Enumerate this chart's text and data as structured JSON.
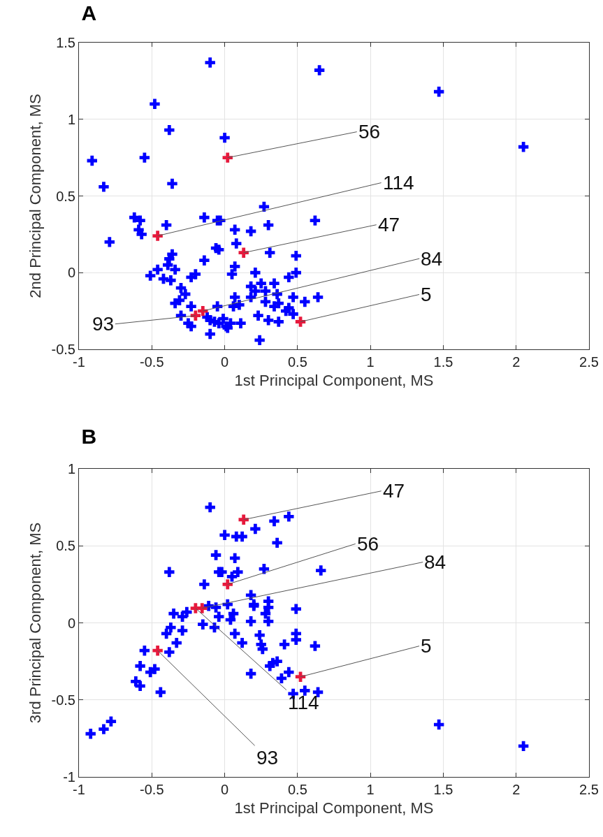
{
  "chart_data": [
    {
      "type": "scatter",
      "title": "A",
      "xlabel": "1st Principal Component, MS",
      "ylabel": "2nd Principal Component, MS",
      "xlim": [
        -1,
        2.5
      ],
      "ylim": [
        -0.5,
        1.5
      ],
      "xticks": [
        -1,
        -0.5,
        0,
        0.5,
        1,
        1.5,
        2,
        2.5
      ],
      "yticks": [
        -0.5,
        0,
        0.5,
        1,
        1.5
      ],
      "grid": true,
      "marker": "cross",
      "series": [
        {
          "color": "#0000ff",
          "x": [
            -0.91,
            -0.83,
            -0.79,
            -0.55,
            -0.48,
            -0.38,
            -0.36,
            -0.1,
            0.0,
            0.65,
            1.47,
            2.05,
            -0.62,
            -0.58,
            -0.59,
            -0.57,
            -0.4,
            -0.14,
            -0.05,
            -0.03,
            0.27,
            0.3,
            0.62,
            0.07,
            0.18,
            0.08,
            -0.06,
            -0.04,
            0.31,
            0.49,
            -0.14,
            0.07,
            0.05,
            0.21,
            0.49,
            0.44,
            -0.36,
            -0.38,
            -0.34,
            -0.46,
            -0.51,
            -0.42,
            -0.37,
            -0.39,
            -0.23,
            -0.3,
            -0.27,
            -0.31,
            -0.34,
            -0.23,
            -0.3,
            -0.25,
            -0.23,
            -0.12,
            -0.1,
            -0.07,
            -0.04,
            -0.1,
            -0.01,
            0.01,
            0.04,
            0.02,
            0.11,
            0.07,
            0.1,
            0.06,
            0.18,
            0.21,
            0.18,
            0.25,
            0.28,
            0.34,
            0.36,
            0.37,
            0.28,
            0.23,
            0.3,
            0.37,
            0.34,
            0.44,
            0.47,
            0.55,
            0.64,
            0.42,
            0.47,
            0.24,
            -0.05,
            -0.2
          ],
          "values": [
            0.73,
            0.56,
            0.2,
            0.75,
            1.1,
            0.93,
            0.58,
            1.37,
            0.88,
            1.32,
            1.18,
            0.82,
            0.36,
            0.34,
            0.28,
            0.25,
            0.31,
            0.36,
            0.34,
            0.34,
            0.43,
            0.31,
            0.34,
            0.28,
            0.27,
            0.19,
            0.16,
            0.15,
            0.13,
            0.11,
            0.08,
            0.04,
            -0.01,
            0.0,
            0.0,
            -0.03,
            0.12,
            0.09,
            0.02,
            0.02,
            -0.02,
            -0.04,
            -0.05,
            0.05,
            -0.03,
            -0.1,
            -0.14,
            -0.18,
            -0.2,
            -0.22,
            -0.28,
            -0.33,
            -0.35,
            -0.29,
            -0.31,
            -0.32,
            -0.33,
            -0.4,
            -0.3,
            -0.35,
            -0.33,
            -0.36,
            -0.33,
            -0.16,
            -0.21,
            -0.22,
            -0.09,
            -0.12,
            -0.16,
            -0.07,
            -0.12,
            -0.07,
            -0.14,
            -0.2,
            -0.19,
            -0.28,
            -0.31,
            -0.32,
            -0.22,
            -0.23,
            -0.16,
            -0.19,
            -0.16,
            -0.25,
            -0.27,
            -0.44,
            -0.22,
            -0.01
          ]
        },
        {
          "color": "#e6193c",
          "x": [
            0.02,
            -0.46,
            0.13,
            -0.15,
            0.52,
            -0.2
          ],
          "values": [
            0.75,
            0.24,
            0.13,
            -0.25,
            -0.32,
            -0.28
          ]
        }
      ],
      "annotations": [
        {
          "text": "56",
          "x": 0.02,
          "y": 0.75
        },
        {
          "text": "114",
          "x": -0.46,
          "y": 0.24
        },
        {
          "text": "47",
          "x": 0.13,
          "y": 0.13
        },
        {
          "text": "84",
          "x": -0.15,
          "y": -0.25
        },
        {
          "text": "5",
          "x": 0.52,
          "y": -0.32
        },
        {
          "text": "93",
          "x": -0.2,
          "y": -0.28
        }
      ]
    },
    {
      "type": "scatter",
      "title": "B",
      "xlabel": "1st Principal Component, MS",
      "ylabel": "3rd Principal Component, MS",
      "xlim": [
        -1,
        2.5
      ],
      "ylim": [
        -1,
        1
      ],
      "xticks": [
        -1,
        -0.5,
        0,
        0.5,
        1,
        1.5,
        2,
        2.5
      ],
      "yticks": [
        -1,
        -0.5,
        0,
        0.5,
        1
      ],
      "grid": true,
      "marker": "cross",
      "series": [
        {
          "color": "#0000ff",
          "x": [
            -0.1,
            0.0,
            0.08,
            0.12,
            0.21,
            0.34,
            0.44,
            0.36,
            0.66,
            -0.06,
            -0.38,
            -0.04,
            -0.02,
            0.07,
            0.09,
            0.05,
            -0.14,
            0.27,
            0.18,
            0.3,
            0.2,
            0.49,
            0.28,
            -0.92,
            -0.83,
            -0.78,
            -0.61,
            -0.58,
            -0.58,
            -0.51,
            -0.44,
            -0.55,
            -0.48,
            -0.38,
            -0.4,
            -0.37,
            -0.33,
            -0.29,
            -0.35,
            -0.29,
            -0.26,
            -0.15,
            -0.07,
            -0.04,
            0.04,
            0.06,
            -0.11,
            -0.06,
            0.02,
            0.07,
            0.12,
            0.18,
            0.2,
            0.3,
            0.3,
            0.24,
            0.25,
            0.26,
            0.41,
            0.49,
            0.49,
            0.62,
            0.33,
            0.36,
            0.31,
            0.18,
            0.39,
            0.44,
            0.47,
            0.55,
            0.64,
            1.47,
            2.05
          ],
          "values": [
            0.75,
            0.57,
            0.56,
            0.56,
            0.61,
            0.66,
            0.69,
            0.52,
            0.34,
            0.44,
            0.33,
            0.33,
            0.33,
            0.42,
            0.33,
            0.3,
            0.25,
            0.35,
            0.18,
            0.14,
            0.11,
            0.09,
            0.06,
            -0.72,
            -0.69,
            -0.64,
            -0.38,
            -0.41,
            -0.28,
            -0.32,
            -0.45,
            -0.18,
            -0.3,
            -0.19,
            -0.07,
            -0.03,
            -0.13,
            -0.05,
            0.06,
            0.04,
            0.07,
            -0.01,
            -0.03,
            0.04,
            0.02,
            0.06,
            0.11,
            0.1,
            0.12,
            -0.07,
            -0.13,
            0.01,
            0.12,
            0.1,
            0.01,
            -0.08,
            -0.14,
            -0.17,
            -0.14,
            -0.07,
            -0.11,
            -0.15,
            -0.26,
            -0.25,
            -0.28,
            -0.33,
            -0.36,
            -0.32,
            -0.46,
            -0.44,
            -0.45,
            -0.66,
            -0.8
          ]
        },
        {
          "color": "#e6193c",
          "x": [
            0.13,
            0.02,
            -0.155,
            0.52,
            -0.2,
            -0.46
          ],
          "values": [
            0.67,
            0.25,
            0.095,
            -0.35,
            0.095,
            -0.18
          ]
        }
      ],
      "annotations": [
        {
          "text": "47",
          "x": 0.13,
          "y": 0.67
        },
        {
          "text": "56",
          "x": 0.02,
          "y": 0.25
        },
        {
          "text": "84",
          "x": -0.155,
          "y": 0.095
        },
        {
          "text": "5",
          "x": 0.52,
          "y": -0.35
        },
        {
          "text": "114",
          "x": -0.2,
          "y": 0.095
        },
        {
          "text": "93",
          "x": -0.46,
          "y": -0.18
        }
      ]
    }
  ]
}
